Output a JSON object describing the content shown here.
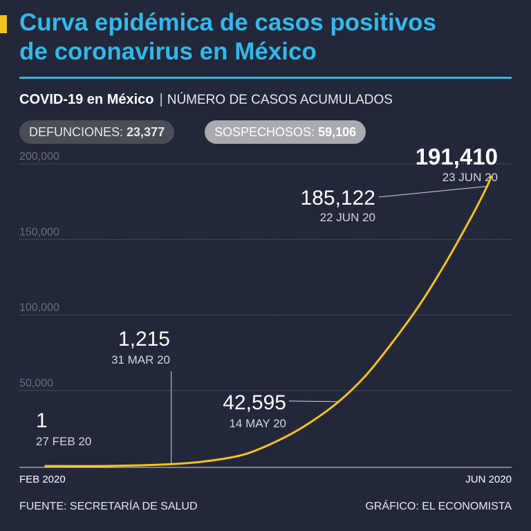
{
  "header": {
    "title_line1": "Curva epidémica de casos positivos",
    "title_line2": "de coronavirus en México",
    "subtitle_bold": "COVID-19 en México",
    "subtitle_separator": "|",
    "subtitle_light": "NÚMERO DE CASOS ACUMULADOS"
  },
  "badges": {
    "deaths_label": "DEFUNCIONES:",
    "deaths_value": "23,377",
    "suspected_label": "SOSPECHOSOS:",
    "suspected_value": "59,106"
  },
  "footer": {
    "source": "FUENTE: SECRETARÍA DE SALUD",
    "credit": "GRÁFICO: EL ECONOMISTA"
  },
  "colors": {
    "background": "#222739",
    "title": "#33b8ea",
    "line": "#f4c31a",
    "gridline": "#8a8e98"
  },
  "chart_data": {
    "type": "line",
    "title": "COVID-19 en México",
    "ylabel": "NÚMERO DE CASOS ACUMULADOS",
    "x_start": "2020-02-27",
    "x_end": "2020-06-23",
    "x_tick_labels": [
      "FEB 2020",
      "JUN 2020"
    ],
    "ylim": [
      0,
      200000
    ],
    "y_ticks": [
      50000,
      100000,
      150000,
      200000
    ],
    "y_tick_labels": [
      "50,000",
      "100,000",
      "150,000",
      "200,000"
    ],
    "grid": true,
    "series": [
      {
        "points": [
          [
            "2020-02-27",
            1
          ],
          [
            "2020-03-15",
            41
          ],
          [
            "2020-03-31",
            1215
          ],
          [
            "2020-04-10",
            3441
          ],
          [
            "2020-04-20",
            8261
          ],
          [
            "2020-04-30",
            19224
          ],
          [
            "2020-05-07",
            29616
          ],
          [
            "2020-05-14",
            42595
          ],
          [
            "2020-05-21",
            59567
          ],
          [
            "2020-05-28",
            81400
          ],
          [
            "2020-06-04",
            105680
          ],
          [
            "2020-06-11",
            133974
          ],
          [
            "2020-06-18",
            165455
          ],
          [
            "2020-06-22",
            185122
          ],
          [
            "2020-06-23",
            191410
          ]
        ]
      }
    ],
    "annotations": [
      {
        "date": "2020-02-27",
        "value": 1,
        "label": "1",
        "date_label": "27 FEB 20"
      },
      {
        "date": "2020-03-31",
        "value": 1215,
        "label": "1,215",
        "date_label": "31 MAR 20"
      },
      {
        "date": "2020-05-14",
        "value": 42595,
        "label": "42,595",
        "date_label": "14 MAY 20"
      },
      {
        "date": "2020-06-22",
        "value": 185122,
        "label": "185,122",
        "date_label": "22 JUN 20"
      },
      {
        "date": "2020-06-23",
        "value": 191410,
        "label": "191,410",
        "date_label": "23 JUN 20"
      }
    ]
  }
}
